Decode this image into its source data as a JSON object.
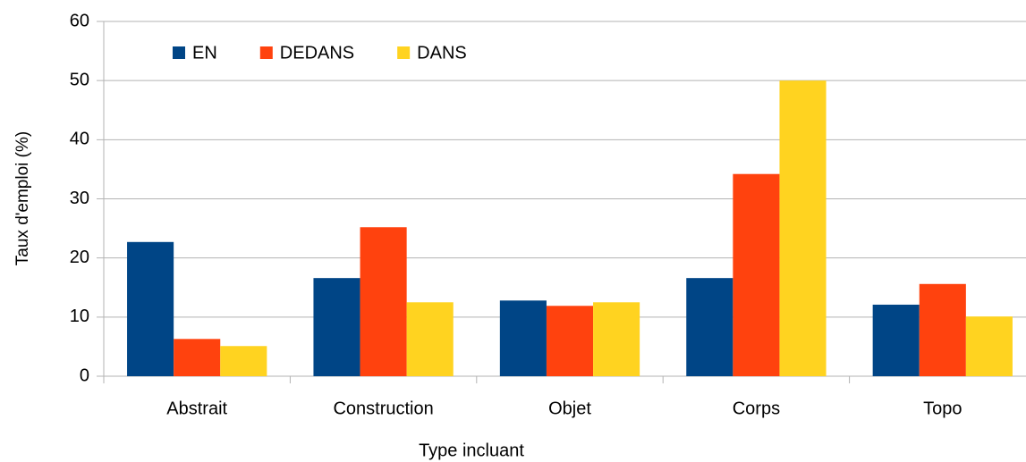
{
  "chart_data": {
    "type": "bar",
    "xlabel": "Type incluant",
    "ylabel": "Taux d'emploi (%)",
    "categories": [
      "Abstrait",
      "Construction",
      "Objet",
      "Corps",
      "Topo"
    ],
    "series": [
      {
        "name": "EN",
        "color": "#004586",
        "values": [
          22.7,
          16.6,
          12.8,
          16.6,
          12.1
        ]
      },
      {
        "name": "DEDANS",
        "color": "#ff420e",
        "values": [
          6.3,
          25.2,
          11.9,
          34.2,
          15.6
        ]
      },
      {
        "name": "DANS",
        "color": "#ffd320",
        "values": [
          5.1,
          12.5,
          12.5,
          50,
          10.1
        ]
      }
    ],
    "ylim": [
      0,
      60
    ],
    "yticks": [
      0,
      10,
      20,
      30,
      40,
      50,
      60
    ],
    "grid": true,
    "legend": "top-left"
  }
}
